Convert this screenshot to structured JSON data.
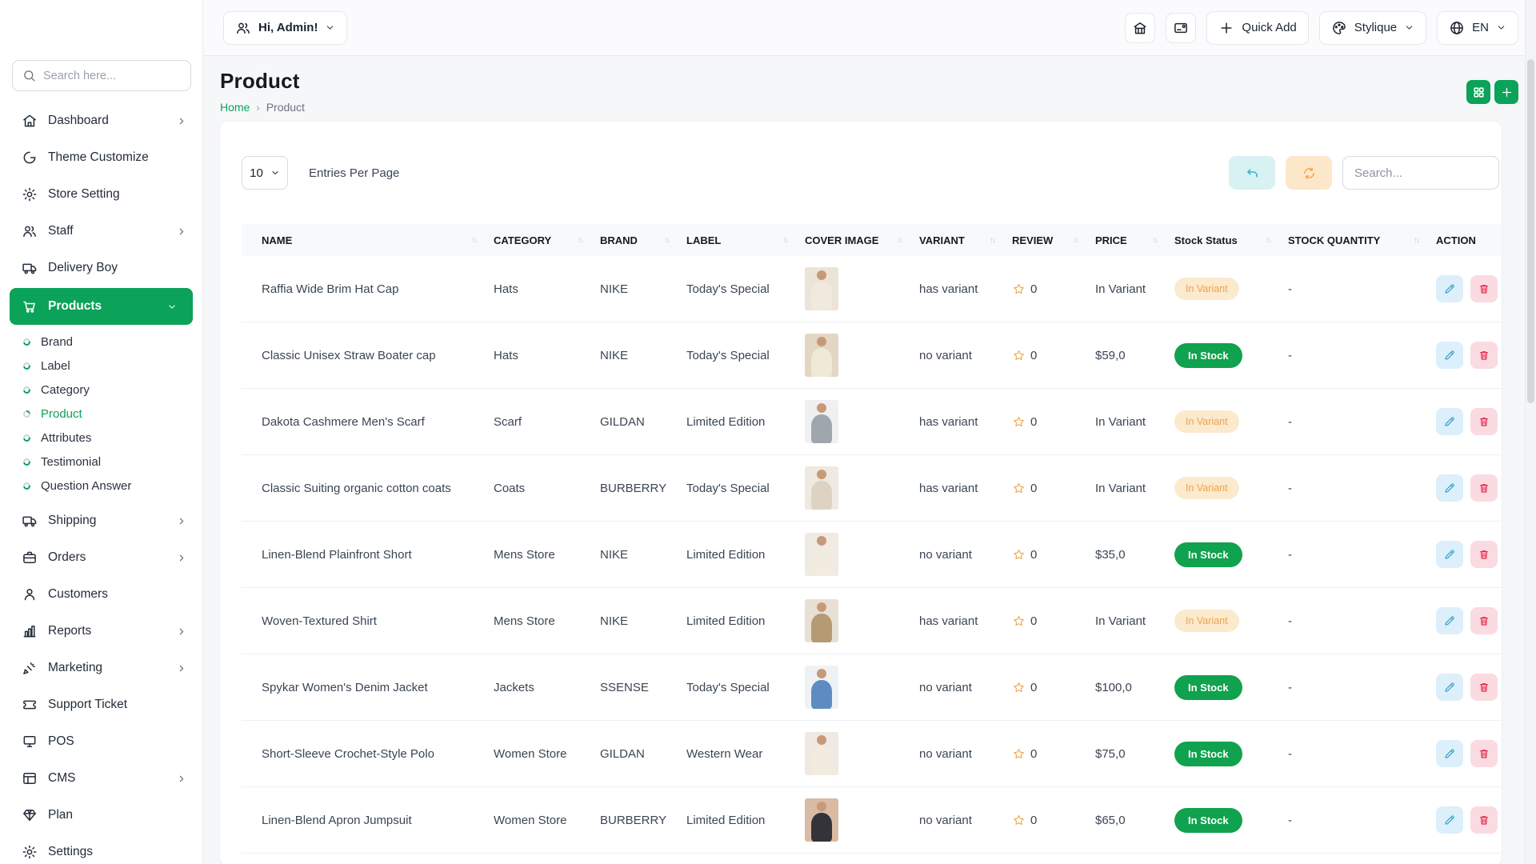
{
  "theme": {
    "primary_green": "#0BA259",
    "success_green": "#10A24E",
    "warning_badge_bg": "#FBEACD",
    "warning_badge_text": "#F0A24B",
    "edit_button_bg": "#DCEFFA",
    "edit_icon_color": "#35A4C8",
    "delete_button_bg": "#FADBE1",
    "delete_icon_color": "#E5264C",
    "undo_button_bg": "#D8F1F2",
    "refresh_button_bg": "#FDE7CB",
    "star_color": "#F2A64E"
  },
  "sidebar": {
    "search_placeholder": "Search here...",
    "items": [
      {
        "label": "Dashboard",
        "icon": "home",
        "expandable": true
      },
      {
        "label": "Theme Customize",
        "icon": "theme"
      },
      {
        "label": "Store Setting",
        "icon": "gear"
      },
      {
        "label": "Staff",
        "icon": "users",
        "expandable": true
      },
      {
        "label": "Delivery Boy",
        "icon": "truck"
      },
      {
        "label": "Products",
        "icon": "cart",
        "expandable": true,
        "expanded": true,
        "active": true,
        "children": [
          {
            "label": "Brand"
          },
          {
            "label": "Label"
          },
          {
            "label": "Category"
          },
          {
            "label": "Product",
            "active": true
          },
          {
            "label": "Attributes"
          },
          {
            "label": "Testimonial"
          },
          {
            "label": "Question Answer"
          }
        ]
      },
      {
        "label": "Shipping",
        "icon": "truck",
        "expandable": true
      },
      {
        "label": "Orders",
        "icon": "briefcase",
        "expandable": true
      },
      {
        "label": "Customers",
        "icon": "person"
      },
      {
        "label": "Reports",
        "icon": "chart",
        "expandable": true
      },
      {
        "label": "Marketing",
        "icon": "megaphone",
        "expandable": true
      },
      {
        "label": "Support Ticket",
        "icon": "ticket"
      },
      {
        "label": "POS",
        "icon": "pos"
      },
      {
        "label": "CMS",
        "icon": "cms",
        "expandable": true
      },
      {
        "label": "Plan",
        "icon": "gem"
      },
      {
        "label": "Settings",
        "icon": "gear"
      }
    ]
  },
  "topbar": {
    "greeting": "Hi, Admin!",
    "quick_add_label": "Quick Add",
    "brand_label": "Stylique",
    "language": "EN"
  },
  "page": {
    "title": "Product",
    "breadcrumb": {
      "home": "Home",
      "separator": "›",
      "current": "Product"
    }
  },
  "toolbar": {
    "entries_value": "10",
    "entries_label": "Entries Per Page",
    "search_placeholder": "Search..."
  },
  "table": {
    "columns": [
      {
        "label": "NAME",
        "sortable": true
      },
      {
        "label": "CATEGORY",
        "sortable": true
      },
      {
        "label": "BRAND",
        "sortable": true
      },
      {
        "label": "LABEL",
        "sortable": true
      },
      {
        "label": "COVER IMAGE",
        "sortable": true
      },
      {
        "label": "VARIANT",
        "sortable": true
      },
      {
        "label": "REVIEW",
        "sortable": true
      },
      {
        "label": "PRICE",
        "sortable": true
      },
      {
        "label": "Stock Status",
        "sortable": true
      },
      {
        "label": "STOCK QUANTITY",
        "sortable": true
      },
      {
        "label": "ACTION",
        "sortable": false
      }
    ],
    "rows": [
      {
        "name": "Raffia Wide Brim Hat Cap",
        "category": "Hats",
        "brand": "NIKE",
        "label": "Today's Special",
        "variant": "has variant",
        "review": "0",
        "price": "In Variant",
        "stock_status": "In Variant",
        "stock_state": "warning",
        "stock_quantity": "-",
        "thumb": {
          "bg": "#ece4d8",
          "outfit": "#f0e9dc"
        }
      },
      {
        "name": "Classic Unisex Straw Boater cap",
        "category": "Hats",
        "brand": "NIKE",
        "label": "Today's Special",
        "variant": "no variant",
        "review": "0",
        "price": "$59,0",
        "stock_status": "In Stock",
        "stock_state": "success",
        "stock_quantity": "-",
        "thumb": {
          "bg": "#e3d7c3",
          "outfit": "#efe9d8"
        }
      },
      {
        "name": "Dakota Cashmere Men's Scarf",
        "category": "Scarf",
        "brand": "GILDAN",
        "label": "Limited Edition",
        "variant": "has variant",
        "review": "0",
        "price": "In Variant",
        "stock_status": "In Variant",
        "stock_state": "warning",
        "stock_quantity": "-",
        "thumb": {
          "bg": "#f0f0f2",
          "outfit": "#9fa6ad"
        }
      },
      {
        "name": "Classic Suiting organic cotton coats",
        "category": "Coats",
        "brand": "BURBERRY",
        "label": "Today's Special",
        "variant": "has variant",
        "review": "0",
        "price": "In Variant",
        "stock_status": "In Variant",
        "stock_state": "warning",
        "stock_quantity": "-",
        "thumb": {
          "bg": "#eee9e1",
          "outfit": "#ded3c2"
        }
      },
      {
        "name": "Linen-Blend Plainfront Short",
        "category": "Mens Store",
        "brand": "NIKE",
        "label": "Limited Edition",
        "variant": "no variant",
        "review": "0",
        "price": "$35,0",
        "stock_status": "In Stock",
        "stock_state": "success",
        "stock_quantity": "-",
        "thumb": {
          "bg": "#efebe3",
          "outfit": "#f2ece0"
        }
      },
      {
        "name": "Woven-Textured Shirt",
        "category": "Mens Store",
        "brand": "NIKE",
        "label": "Limited Edition",
        "variant": "has variant",
        "review": "0",
        "price": "In Variant",
        "stock_status": "In Variant",
        "stock_state": "warning",
        "stock_quantity": "-",
        "thumb": {
          "bg": "#e8e0d4",
          "outfit": "#b49b73"
        }
      },
      {
        "name": "Spykar Women's Denim Jacket",
        "category": "Jackets",
        "brand": "SSENSE",
        "label": "Today's Special",
        "variant": "no variant",
        "review": "0",
        "price": "$100,0",
        "stock_status": "In Stock",
        "stock_state": "success",
        "stock_quantity": "-",
        "thumb": {
          "bg": "#eef2f5",
          "outfit": "#5e8cc2"
        }
      },
      {
        "name": "Short-Sleeve Crochet-Style Polo",
        "category": "Women Store",
        "brand": "GILDAN",
        "label": "Western Wear",
        "variant": "no variant",
        "review": "0",
        "price": "$75,0",
        "stock_status": "In Stock",
        "stock_state": "success",
        "stock_quantity": "-",
        "thumb": {
          "bg": "#efe9e1",
          "outfit": "#f2ecdf"
        }
      },
      {
        "name": "Linen-Blend Apron Jumpsuit",
        "category": "Women Store",
        "brand": "BURBERRY",
        "label": "Limited Edition",
        "variant": "no variant",
        "review": "0",
        "price": "$65,0",
        "stock_status": "In Stock",
        "stock_state": "success",
        "stock_quantity": "-",
        "thumb": {
          "bg": "#d9bba4",
          "outfit": "#33333a"
        }
      }
    ]
  }
}
